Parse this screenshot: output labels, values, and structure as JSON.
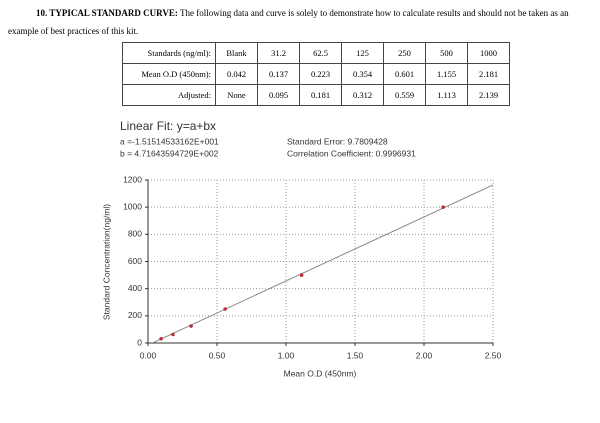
{
  "header": {
    "title": "10. TYPICAL STANDARD CURVE:",
    "text": "The following data and curve is solely to demonstrate how to calculate results and should not be taken as an example of best practices of this kit."
  },
  "table": {
    "rows": [
      [
        "Standards (ng/ml):",
        "Blank",
        "31.2",
        "62.5",
        "125",
        "250",
        "500",
        "1000"
      ],
      [
        "Mean O.D (450nm):",
        "0.042",
        "0.137",
        "0.223",
        "0.354",
        "0.601",
        "1.155",
        "2.181"
      ],
      [
        "Adjusted:",
        "None",
        "0.095",
        "0.181",
        "0.312",
        "0.559",
        "1.113",
        "2.139"
      ]
    ]
  },
  "chart_data": {
    "type": "scatter",
    "title": "Linear Fit: y=a+bx",
    "fit": {
      "intercept": {
        "value": -15.1514533162,
        "label": "a =-1.51514533162E+001"
      },
      "slope": {
        "value": 471.643594729,
        "label": "b = 4.71643594729E+002"
      },
      "color": "#888888"
    },
    "stats": [
      "Standard Error: 9.7809428",
      "Correlation Coefficient: 0.9996931"
    ],
    "x_label": "Mean O.D (450nm)",
    "y_label": "Standard Concentration(ng/ml)",
    "x": [
      0.095,
      0.181,
      0.312,
      0.559,
      1.113,
      2.139
    ],
    "values": [
      31.2,
      62.5,
      125,
      250,
      500,
      1000
    ],
    "color": "#b0303a",
    "xlim": [
      0,
      2.5
    ],
    "ylim": [
      0,
      1200
    ],
    "xticks": [
      {
        "value": 0,
        "label": "0.00"
      },
      {
        "value": 0.5,
        "label": "0.50"
      },
      {
        "value": 1,
        "label": "1.00"
      },
      {
        "value": 1.5,
        "label": "1.50"
      },
      {
        "value": 2,
        "label": "2.00"
      },
      {
        "value": 2.5,
        "label": "2.50"
      }
    ],
    "yticks": [
      0,
      200,
      400,
      600,
      800,
      1000,
      1200
    ],
    "grid": true
  }
}
